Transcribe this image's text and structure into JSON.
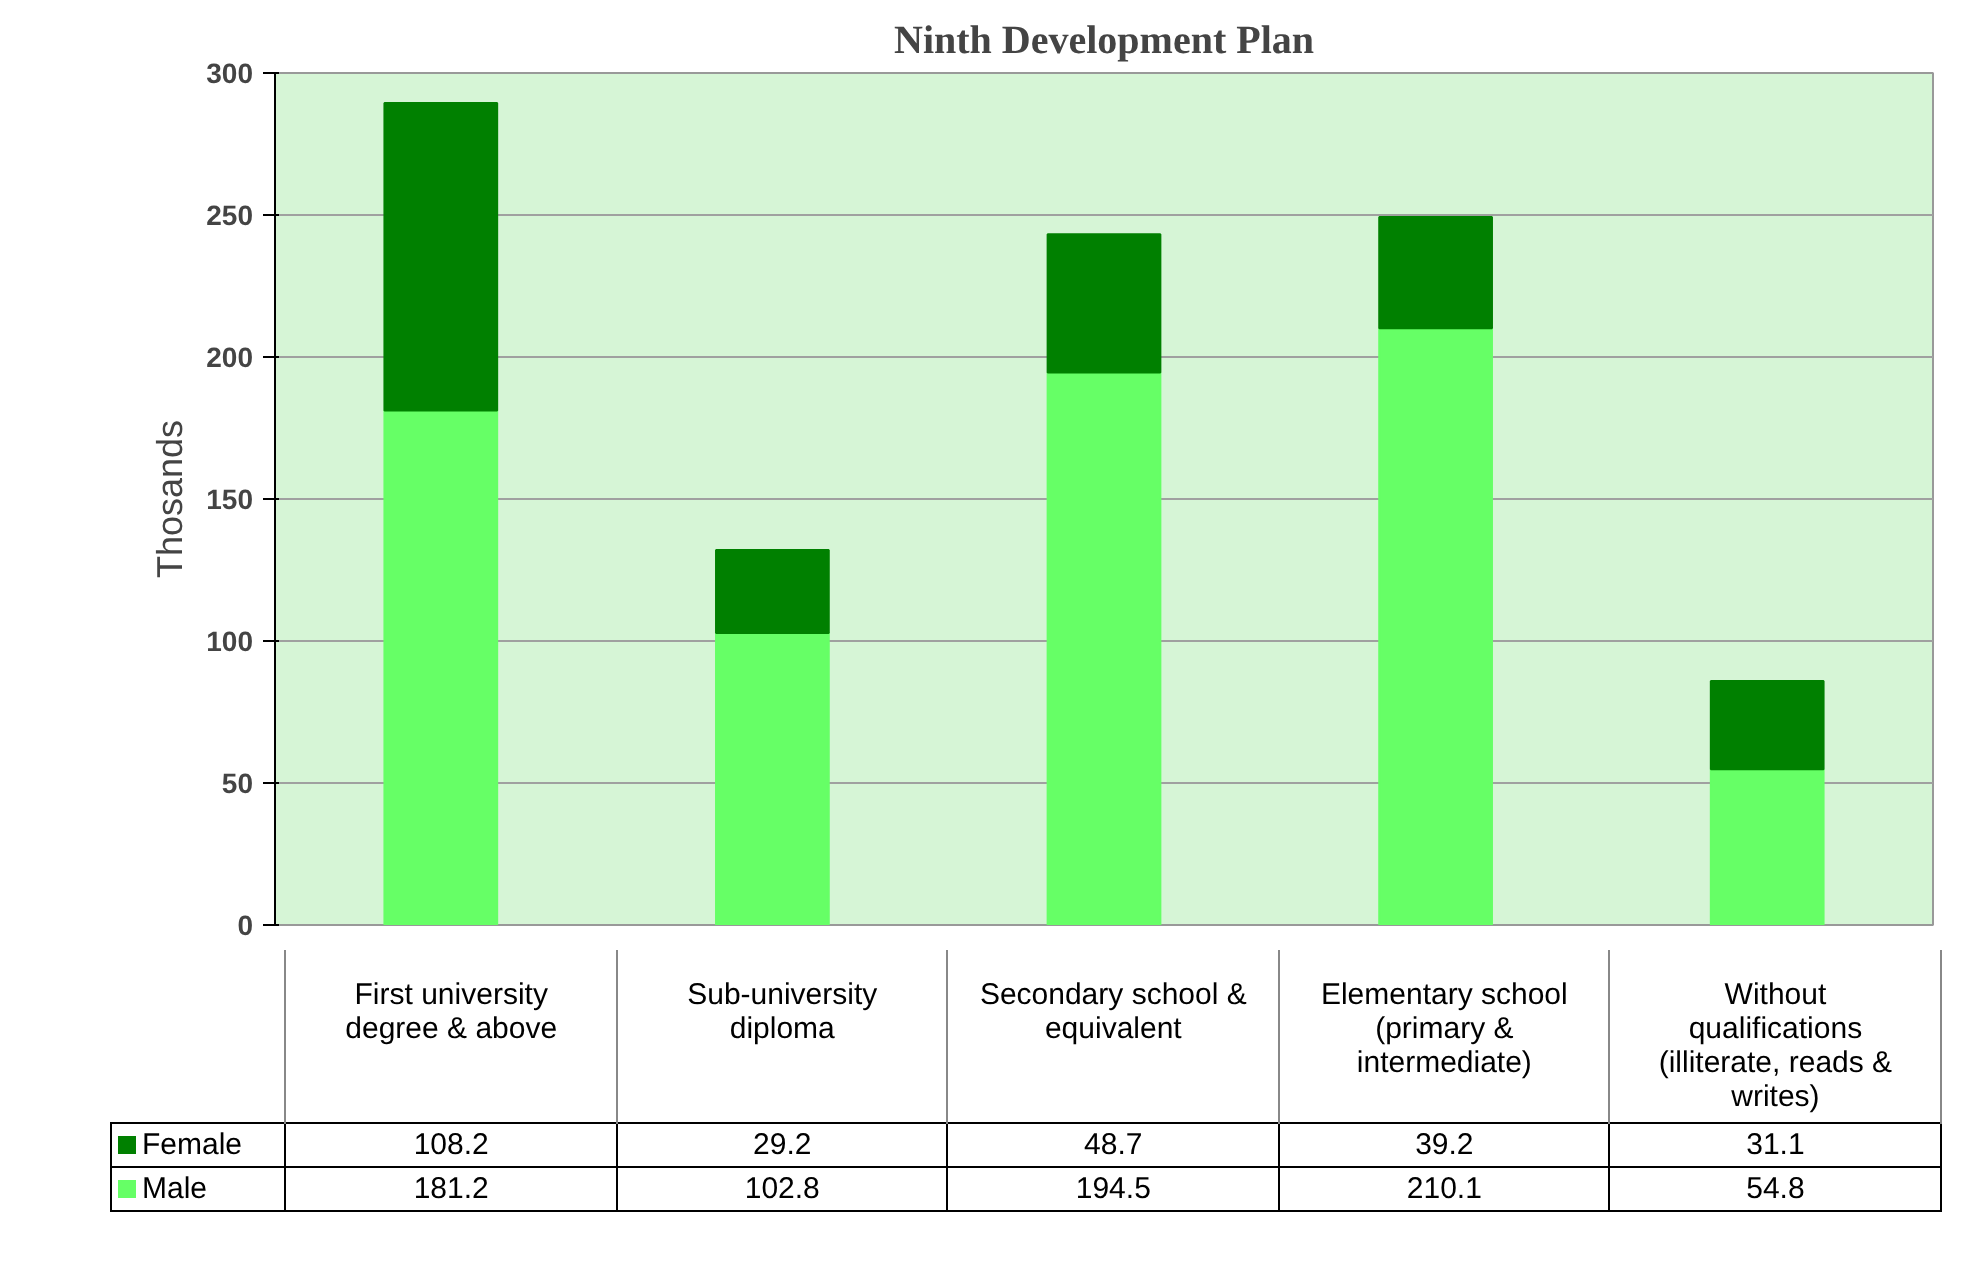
{
  "chart_data": {
    "type": "bar",
    "title": "Ninth Development Plan",
    "ylabel": "Thosands",
    "categories": [
      "First university degree & above",
      "Sub-university diploma",
      "Secondary school & equivalent",
      "Elementary school (primary & intermediate)",
      "Without qualifications (illiterate, reads & writes)"
    ],
    "stacked": true,
    "series": [
      {
        "name": "Male",
        "color": "#66ff66",
        "values": [
          181.2,
          102.8,
          194.5,
          210.1,
          54.8
        ]
      },
      {
        "name": "Female",
        "color": "#008000",
        "values": [
          108.2,
          29.2,
          48.7,
          39.2,
          31.1
        ]
      }
    ],
    "ylim": [
      0,
      300
    ],
    "yticks": [
      0,
      50,
      100,
      150,
      200,
      250,
      300
    ],
    "grid": "y",
    "legend": "bottom",
    "data_labels": true
  }
}
